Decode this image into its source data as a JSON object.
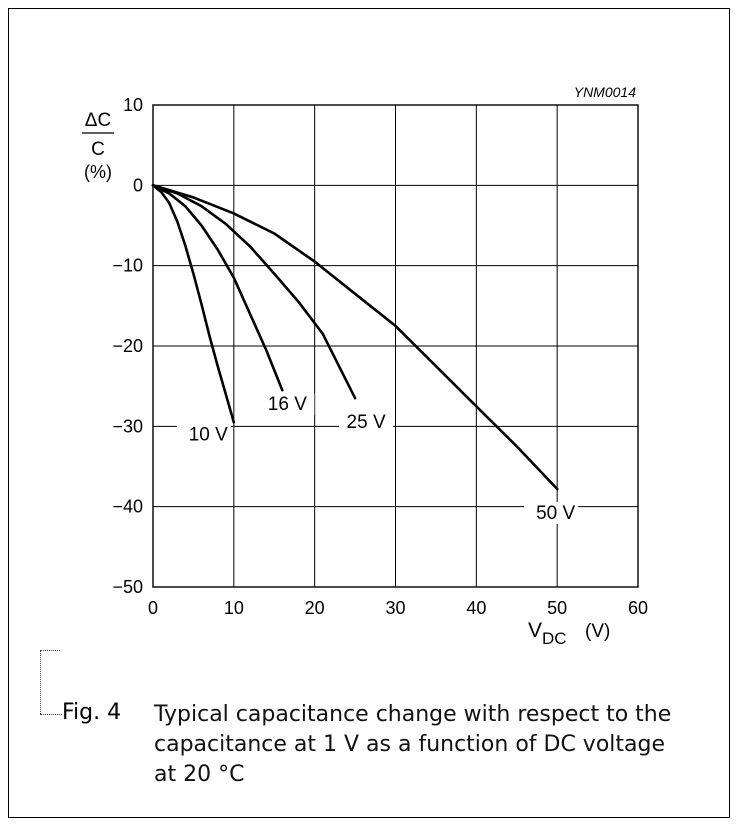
{
  "chart_data": {
    "type": "line",
    "figure_id": "YNM0014",
    "xlabel_main": "V",
    "xlabel_sub": "DC",
    "xlabel_unit": "(V)",
    "ylabel_numerator": "ΔC",
    "ylabel_denominator": "C",
    "ylabel_unit": "(%)",
    "xlim": [
      0,
      60
    ],
    "ylim": [
      -50,
      10
    ],
    "xticks": [
      0,
      10,
      20,
      30,
      40,
      50,
      60
    ],
    "yticks": [
      10,
      0,
      -10,
      -20,
      -30,
      -40,
      -50
    ],
    "ytick_labels": [
      "10",
      "0",
      "−10",
      "−20",
      "−30",
      "−40",
      "−50"
    ],
    "grid": true,
    "series": [
      {
        "name": "10 V",
        "x": [
          0,
          1,
          2,
          3,
          4,
          5,
          6,
          7,
          8,
          9,
          10
        ],
        "y": [
          0,
          -0.8,
          -2.2,
          -4.5,
          -7.5,
          -11,
          -14.8,
          -18.8,
          -22.5,
          -26,
          -29.5
        ]
      },
      {
        "name": "16 V",
        "x": [
          0,
          2,
          4,
          6,
          8,
          10,
          12,
          14,
          16
        ],
        "y": [
          0,
          -1,
          -2.6,
          -5,
          -8,
          -11.5,
          -16,
          -20.5,
          -25.5
        ]
      },
      {
        "name": "25 V",
        "x": [
          0,
          3,
          6,
          9,
          12,
          15,
          18,
          21,
          25
        ],
        "y": [
          0,
          -1,
          -2.6,
          -4.8,
          -7.6,
          -11,
          -14.5,
          -18.5,
          -26.5
        ]
      },
      {
        "name": "50 V",
        "x": [
          0,
          5,
          10,
          15,
          20,
          25,
          30,
          35,
          40,
          45,
          50
        ],
        "y": [
          0,
          -1.5,
          -3.5,
          -6,
          -9.5,
          -13.5,
          -17.5,
          -22.5,
          -27.5,
          -32.5,
          -37.8
        ]
      }
    ]
  },
  "caption": {
    "label": "Fig. 4",
    "text": "Typical capacitance change with respect to the capacitance at 1 V as a function of DC voltage at 20 °C"
  }
}
